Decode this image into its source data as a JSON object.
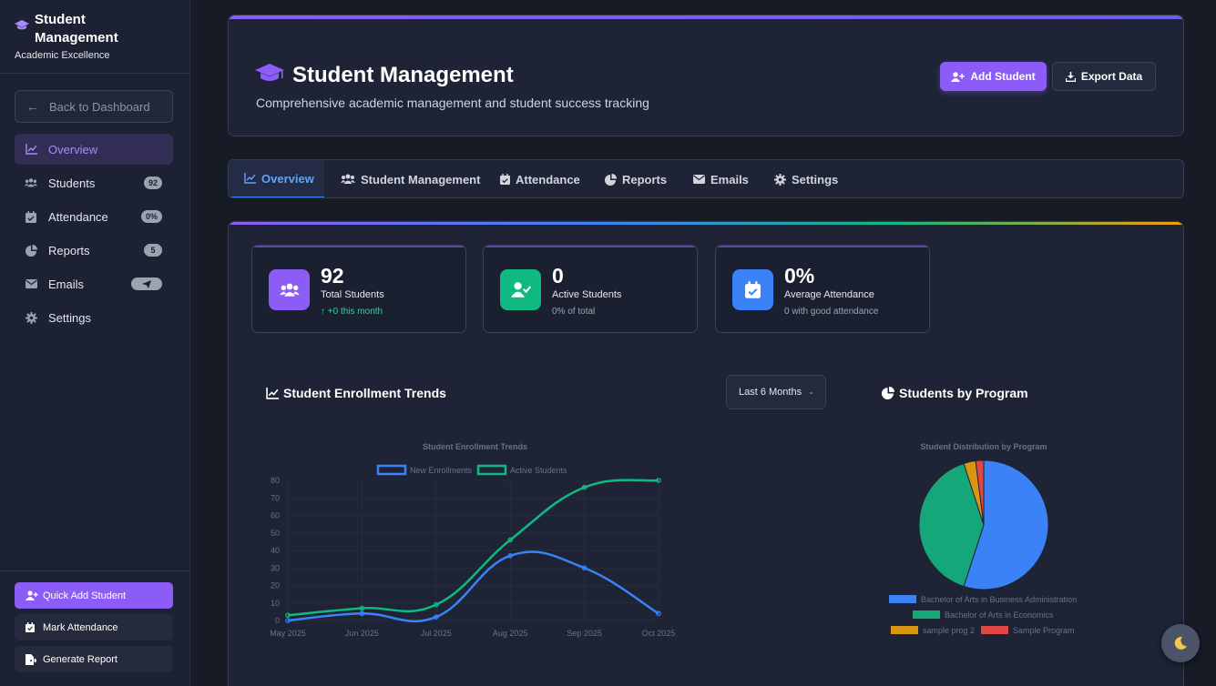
{
  "sidebar": {
    "brand_title": "Student Management",
    "brand_subtitle": "Academic Excellence",
    "back_label": "Back to Dashboard",
    "items": [
      {
        "label": "Overview",
        "icon": "chart-line-icon",
        "badge": ""
      },
      {
        "label": "Students",
        "icon": "users-icon",
        "badge": "92"
      },
      {
        "label": "Attendance",
        "icon": "calendar-check-icon",
        "badge": "0%"
      },
      {
        "label": "Reports",
        "icon": "pie-chart-icon",
        "badge": "5"
      },
      {
        "label": "Emails",
        "icon": "envelope-icon",
        "badge": ""
      },
      {
        "label": "Settings",
        "icon": "gear-icon",
        "badge": ""
      }
    ],
    "quick_add": "Quick Add Student",
    "mark_attendance": "Mark Attendance",
    "generate_report": "Generate Report"
  },
  "header": {
    "title": "Student Management",
    "subtitle": "Comprehensive academic management and student success tracking",
    "add_button": "Add Student",
    "export_button": "Export Data"
  },
  "tabs": [
    {
      "label": "Overview",
      "icon": "chart-line-icon"
    },
    {
      "label": "Student Management",
      "icon": "users-icon"
    },
    {
      "label": "Attendance",
      "icon": "calendar-check-icon"
    },
    {
      "label": "Reports",
      "icon": "pie-chart-icon"
    },
    {
      "label": "Emails",
      "icon": "envelope-icon"
    },
    {
      "label": "Settings",
      "icon": "gear-icon"
    }
  ],
  "stats": [
    {
      "value": "92",
      "label": "Total Students",
      "note": "+0 this month",
      "color": "#8b5cf6"
    },
    {
      "value": "0",
      "label": "Active Students",
      "note": "0% of total",
      "color": "#10b981"
    },
    {
      "value": "0%",
      "label": "Average Attendance",
      "note": "0 with good attendance",
      "color": "#3b82f6"
    }
  ],
  "enrollment": {
    "panel_title": "Student Enrollment Trends",
    "range_selected": "Last 6 Months"
  },
  "program": {
    "panel_title": "Students by Program"
  },
  "colors": {
    "accent": "#8b5cf6",
    "blue": "#3b82f6",
    "green": "#10b981",
    "orange": "#d89614",
    "red": "#e04646"
  },
  "chart_data": [
    {
      "type": "line",
      "title": "Student Enrollment Trends",
      "categories": [
        "May 2025",
        "Jun 2025",
        "Jul 2025",
        "Aug 2025",
        "Sep 2025",
        "Oct 2025"
      ],
      "series": [
        {
          "name": "New Enrollments",
          "values": [
            0,
            4,
            2,
            37,
            30,
            4
          ]
        },
        {
          "name": "Active Students",
          "values": [
            3,
            7,
            9,
            46,
            76,
            80
          ]
        }
      ],
      "ylim": [
        0,
        80
      ],
      "yticks": [
        0,
        10,
        20,
        30,
        40,
        50,
        60,
        70,
        80
      ],
      "legend": "top",
      "grid": true
    },
    {
      "type": "pie",
      "title": "Student Distribution by Program",
      "labels": [
        "Bachelor of Arts in Business Administration",
        "Bachelor of Arts in Economics",
        "sample prog 2",
        "Sample Program"
      ],
      "values": [
        55,
        40,
        3,
        2
      ],
      "legend": "bottom"
    }
  ]
}
